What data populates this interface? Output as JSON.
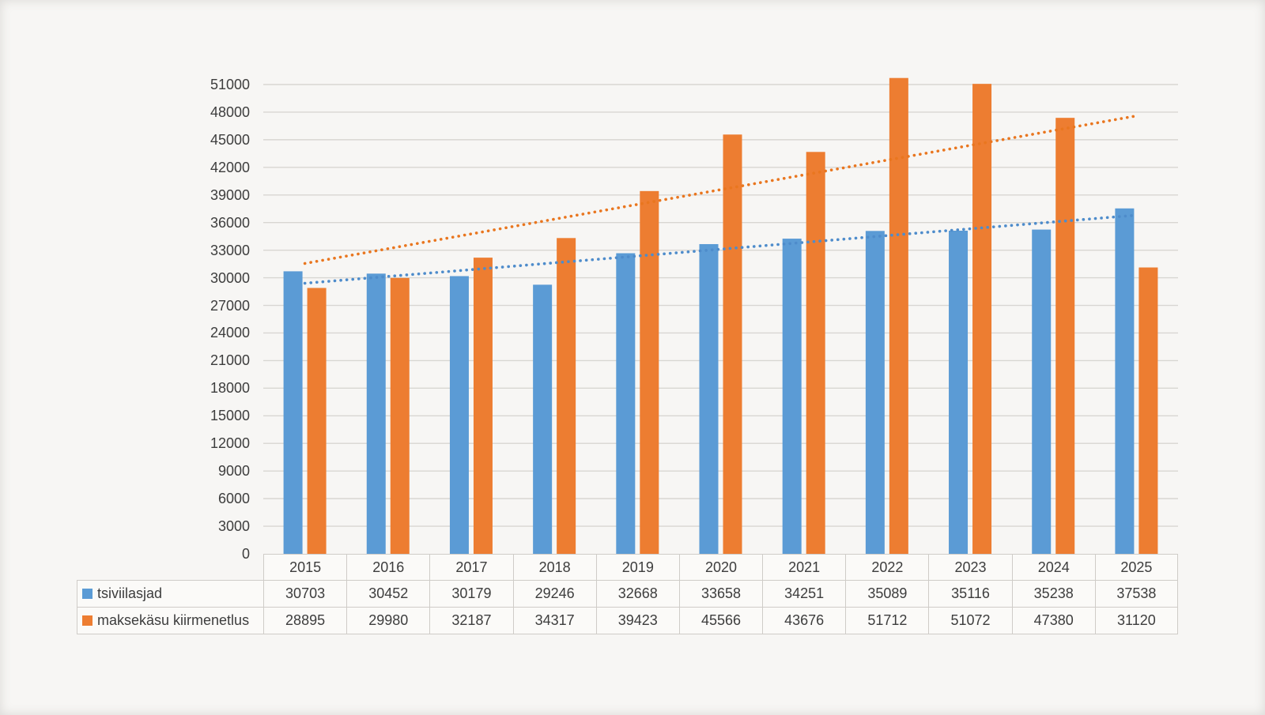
{
  "chart_data": {
    "type": "bar",
    "title": "",
    "categories": [
      "2015",
      "2016",
      "2017",
      "2018",
      "2019",
      "2020",
      "2021",
      "2022",
      "2023",
      "2024",
      "2025"
    ],
    "series": [
      {
        "name": "tsiviilasjad",
        "color": "#5B9BD5",
        "values": [
          30703,
          30452,
          30179,
          29246,
          32668,
          33658,
          34251,
          35089,
          35116,
          35238,
          37538
        ]
      },
      {
        "name": "maksekäsu kiirmenetlus",
        "color": "#ED7D31",
        "values": [
          28895,
          29980,
          32187,
          34317,
          39423,
          45566,
          43676,
          51712,
          51072,
          47380,
          31120
        ]
      }
    ],
    "trendlines": [
      {
        "series": "tsiviilasjad",
        "type": "linear",
        "style": "dotted",
        "color": "#4E8CCB",
        "start_value": 29404,
        "end_value": 36803
      },
      {
        "series": "maksekäsu kiirmenetlus",
        "type": "linear",
        "style": "dotted",
        "color": "#E9761F",
        "start_value": 31556,
        "end_value": 47595
      }
    ],
    "y_axis": {
      "min": 0,
      "max": 51000,
      "tick_step": 3000,
      "tick_labels": [
        "0",
        "3000",
        "6000",
        "9000",
        "12000",
        "15000",
        "18000",
        "21000",
        "24000",
        "27000",
        "30000",
        "33000",
        "36000",
        "39000",
        "42000",
        "45000",
        "48000",
        "51000"
      ]
    },
    "x_axis": {
      "labels_shown_in": "data-table"
    },
    "gridlines": "horizontal",
    "legend_position": "table-left",
    "data_table_shown": true
  },
  "colors": {
    "page_background": "#f7f6f4",
    "gridline": "#d8d6d2",
    "table_border": "#cfccc8",
    "cell_background": "#fbfaf8",
    "text": "#3d3d3d",
    "series_blue": "#5B9BD5",
    "series_orange": "#ED7D31"
  }
}
